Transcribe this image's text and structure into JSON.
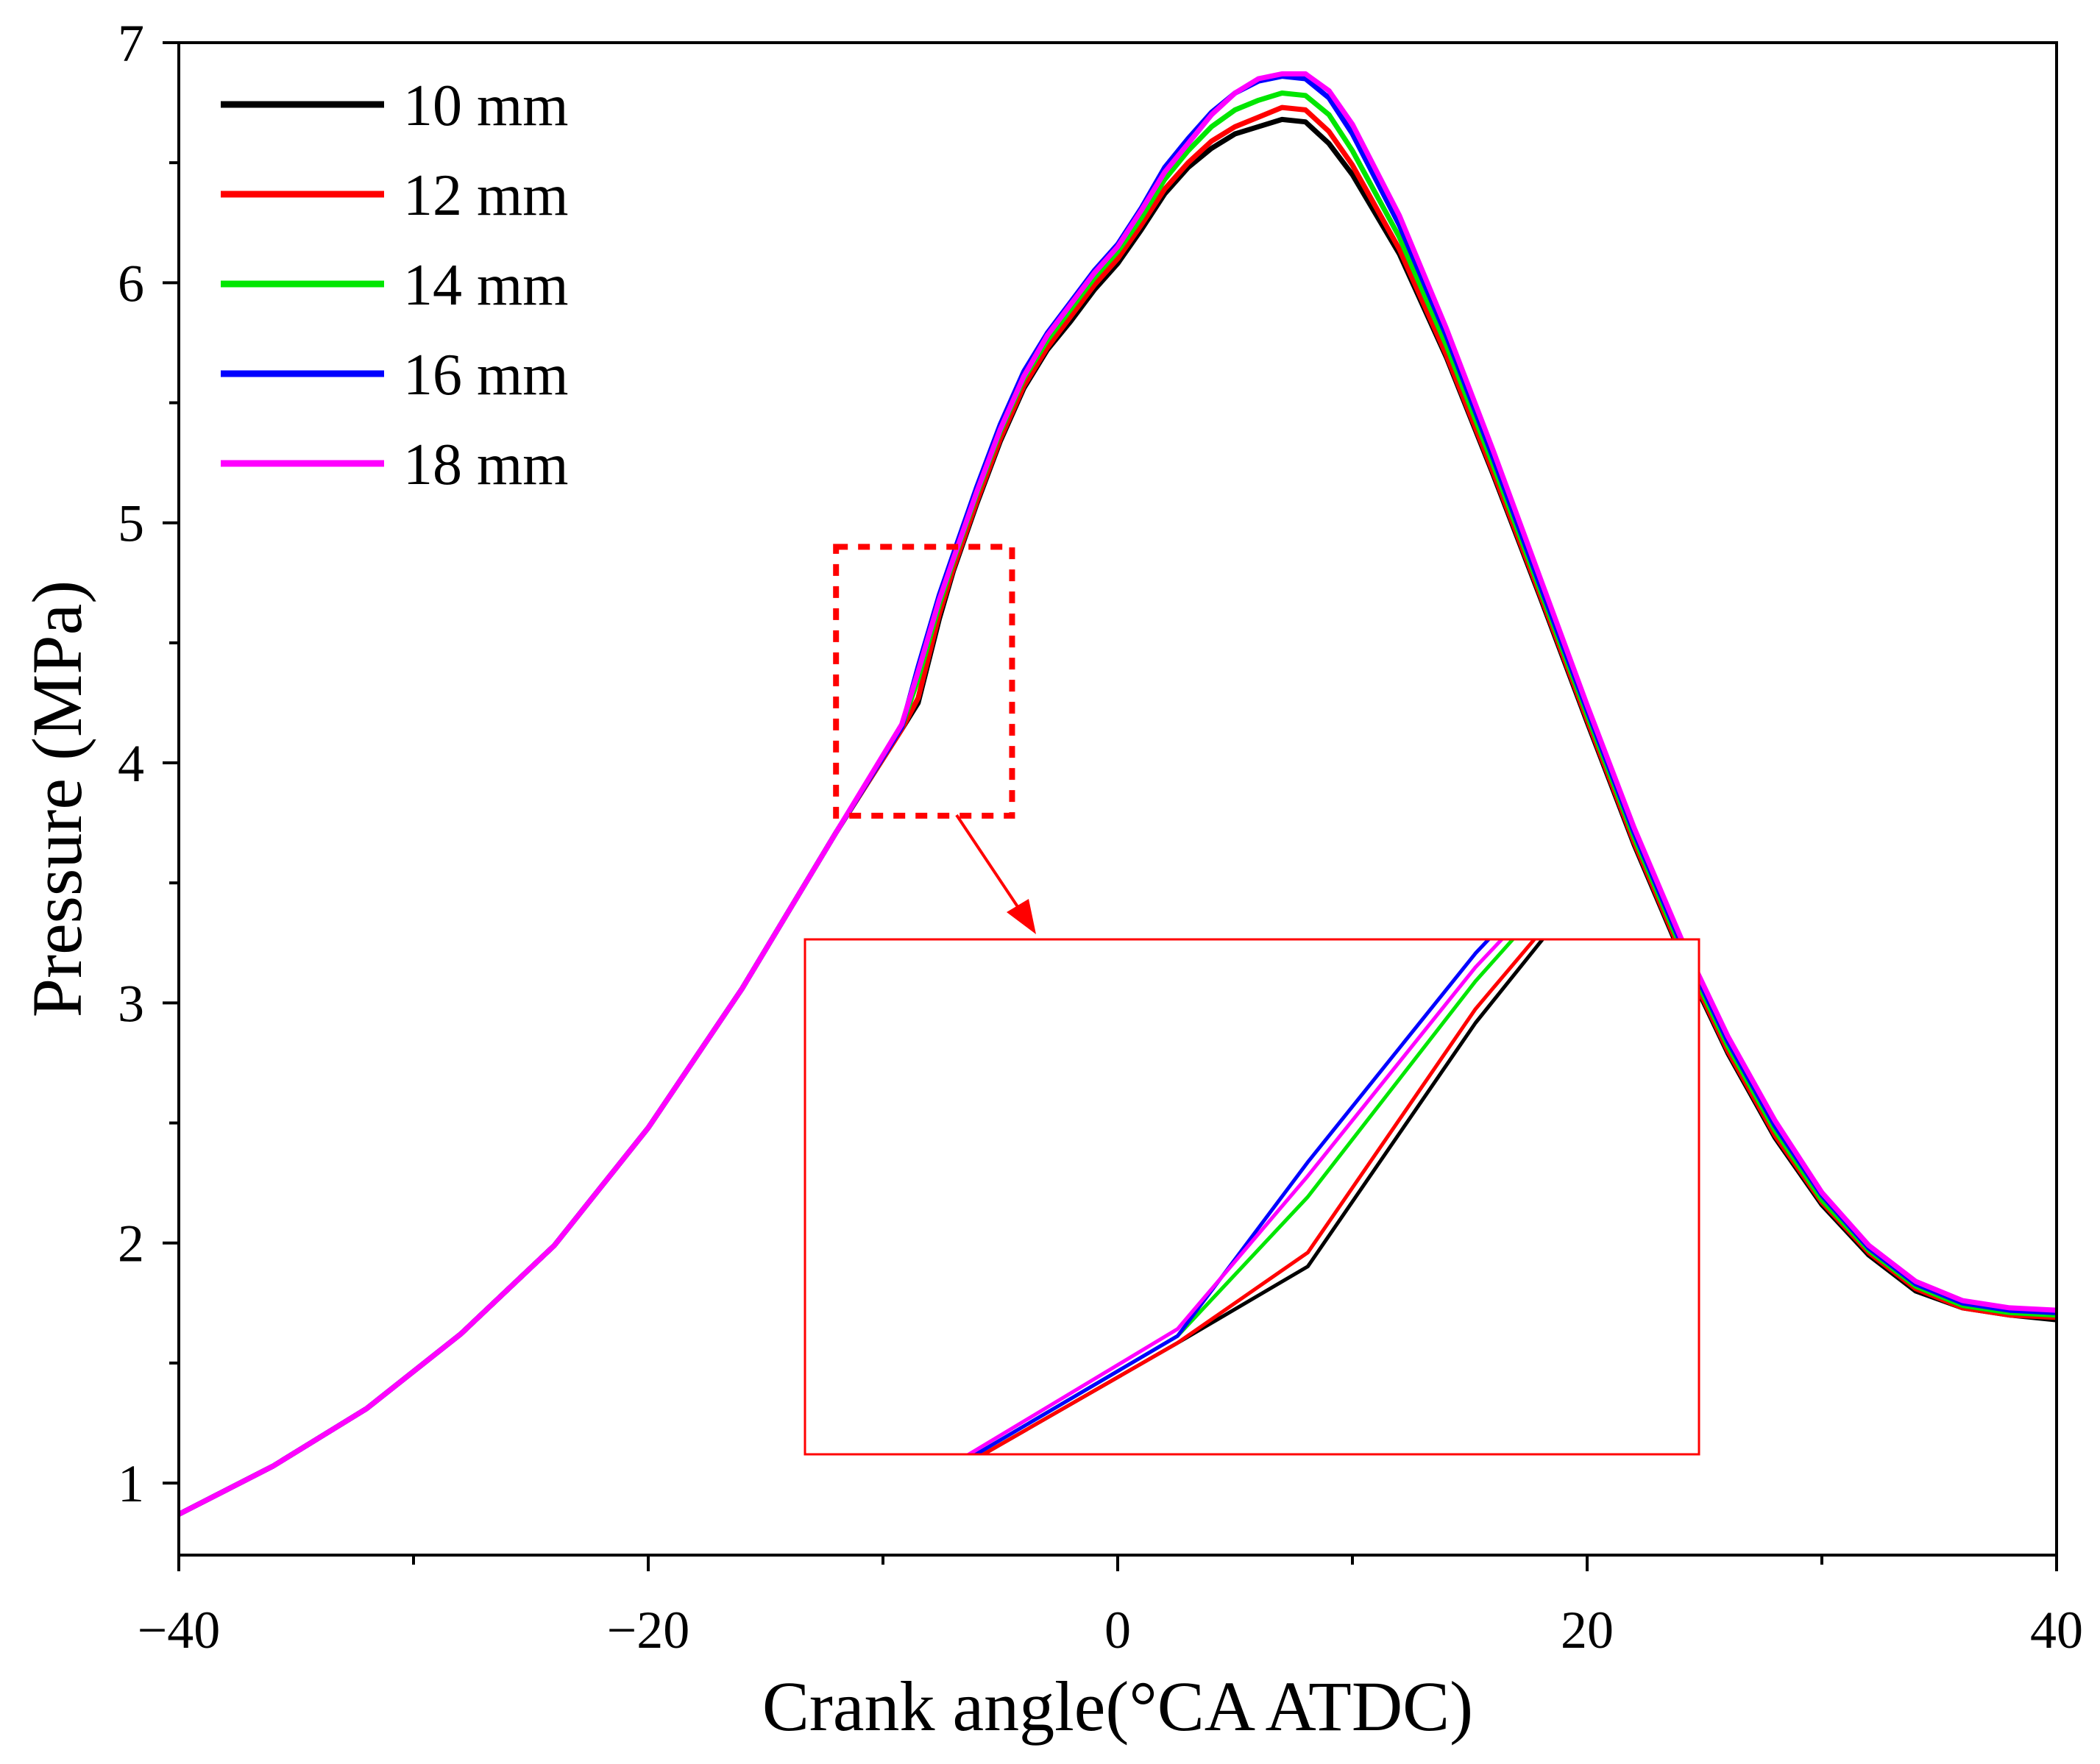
{
  "chart_data": {
    "type": "line",
    "xlabel": "Crank angle(°CA ATDC)",
    "ylabel": "Pressure (MPa)",
    "xlim": [
      -40,
      40
    ],
    "ylim": [
      0.7,
      7
    ],
    "xticks": [
      -40,
      -20,
      0,
      20,
      40
    ],
    "xtick_labels": [
      "−40",
      "−20",
      "0",
      "20",
      "40"
    ],
    "yticks": [
      1,
      2,
      3,
      4,
      5,
      6,
      7
    ],
    "ytick_labels": [
      "1",
      "2",
      "3",
      "4",
      "5",
      "6",
      "7"
    ],
    "grid": false,
    "legend_position": "top-left",
    "series": [
      {
        "name": "10 mm",
        "color": "#000000",
        "x": [
          -40,
          -36,
          -32,
          -28,
          -24,
          -20,
          -16,
          -12,
          -9.2,
          -8.5,
          -7.6,
          -7,
          -6,
          -5,
          -4,
          -3,
          -2,
          -1,
          0,
          1,
          2,
          3,
          4,
          5,
          6,
          7,
          8,
          9,
          10,
          12,
          14,
          16,
          18,
          20,
          22,
          24,
          26,
          28,
          30,
          32,
          34,
          36,
          38,
          40
        ],
        "y": [
          0.87,
          1.07,
          1.31,
          1.62,
          1.99,
          2.48,
          3.06,
          3.71,
          4.14,
          4.25,
          4.6,
          4.8,
          5.08,
          5.34,
          5.56,
          5.72,
          5.84,
          5.97,
          6.08,
          6.22,
          6.37,
          6.48,
          6.56,
          6.62,
          6.65,
          6.68,
          6.67,
          6.58,
          6.45,
          6.12,
          5.69,
          5.2,
          4.69,
          4.17,
          3.66,
          3.2,
          2.79,
          2.44,
          2.16,
          1.95,
          1.8,
          1.73,
          1.7,
          1.68
        ]
      },
      {
        "name": "12 mm",
        "color": "#ff0000",
        "x": [
          -40,
          -36,
          -32,
          -28,
          -24,
          -20,
          -16,
          -12,
          -9.2,
          -8.5,
          -7.6,
          -7,
          -6,
          -5,
          -4,
          -3,
          -2,
          -1,
          0,
          1,
          2,
          3,
          4,
          5,
          6,
          7,
          8,
          9,
          10,
          12,
          14,
          16,
          18,
          20,
          22,
          24,
          26,
          28,
          30,
          32,
          34,
          36,
          38,
          40
        ],
        "y": [
          0.87,
          1.07,
          1.31,
          1.62,
          1.99,
          2.48,
          3.06,
          3.71,
          4.14,
          4.27,
          4.62,
          4.81,
          5.09,
          5.35,
          5.57,
          5.73,
          5.86,
          5.99,
          6.1,
          6.24,
          6.39,
          6.5,
          6.59,
          6.65,
          6.69,
          6.73,
          6.72,
          6.63,
          6.49,
          6.14,
          5.7,
          5.21,
          4.7,
          4.18,
          3.67,
          3.21,
          2.8,
          2.45,
          2.17,
          1.96,
          1.81,
          1.73,
          1.7,
          1.69
        ]
      },
      {
        "name": "14 mm",
        "color": "#00e600",
        "x": [
          -40,
          -36,
          -32,
          -28,
          -24,
          -20,
          -16,
          -12,
          -9.2,
          -8.5,
          -7.6,
          -7,
          -6,
          -5,
          -4,
          -3,
          -2,
          -1,
          0,
          1,
          2,
          3,
          4,
          5,
          6,
          7,
          8,
          9,
          10,
          12,
          14,
          16,
          18,
          20,
          22,
          24,
          26,
          28,
          30,
          32,
          34,
          36,
          38,
          40
        ],
        "y": [
          0.87,
          1.07,
          1.31,
          1.62,
          1.99,
          2.48,
          3.06,
          3.71,
          4.15,
          4.35,
          4.66,
          4.84,
          5.12,
          5.38,
          5.6,
          5.76,
          5.89,
          6.02,
          6.13,
          6.27,
          6.43,
          6.55,
          6.65,
          6.72,
          6.76,
          6.79,
          6.78,
          6.7,
          6.55,
          6.19,
          5.74,
          5.24,
          4.72,
          4.2,
          3.69,
          3.23,
          2.82,
          2.47,
          2.18,
          1.97,
          1.82,
          1.74,
          1.71,
          1.7
        ]
      },
      {
        "name": "16 mm",
        "color": "#0000ff",
        "x": [
          -40,
          -36,
          -32,
          -28,
          -24,
          -20,
          -16,
          -12,
          -9.2,
          -8.5,
          -7.6,
          -7,
          -6,
          -5,
          -4,
          -3,
          -2,
          -1,
          0,
          1,
          2,
          3,
          4,
          5,
          6,
          7,
          8,
          9,
          10,
          12,
          14,
          16,
          18,
          20,
          22,
          24,
          26,
          28,
          30,
          32,
          34,
          36,
          38,
          40
        ],
        "y": [
          0.87,
          1.07,
          1.31,
          1.62,
          1.99,
          2.48,
          3.06,
          3.71,
          4.15,
          4.4,
          4.7,
          4.87,
          5.15,
          5.41,
          5.63,
          5.79,
          5.92,
          6.05,
          6.16,
          6.31,
          6.48,
          6.6,
          6.71,
          6.79,
          6.84,
          6.86,
          6.85,
          6.77,
          6.62,
          6.24,
          5.78,
          5.27,
          4.74,
          4.22,
          3.71,
          3.25,
          2.84,
          2.49,
          2.2,
          1.98,
          1.83,
          1.75,
          1.72,
          1.71
        ]
      },
      {
        "name": "18 mm",
        "color": "#ff00ff",
        "x": [
          -40,
          -36,
          -32,
          -28,
          -24,
          -20,
          -16,
          -12,
          -9.2,
          -8.5,
          -7.6,
          -7,
          -6,
          -5,
          -4,
          -3,
          -2,
          -1,
          0,
          1,
          2,
          3,
          4,
          5,
          6,
          7,
          8,
          9,
          10,
          12,
          14,
          16,
          18,
          20,
          22,
          24,
          26,
          28,
          30,
          32,
          34,
          36,
          38,
          40
        ],
        "y": [
          0.87,
          1.07,
          1.31,
          1.62,
          1.99,
          2.48,
          3.06,
          3.71,
          4.16,
          4.38,
          4.68,
          4.85,
          5.13,
          5.39,
          5.61,
          5.78,
          5.91,
          6.04,
          6.15,
          6.3,
          6.46,
          6.58,
          6.7,
          6.79,
          6.85,
          6.87,
          6.87,
          6.8,
          6.66,
          6.28,
          5.81,
          5.3,
          4.77,
          4.24,
          3.73,
          3.27,
          2.86,
          2.51,
          2.21,
          1.99,
          1.84,
          1.76,
          1.73,
          1.72
        ]
      }
    ],
    "zoom_region": {
      "xlim": [
        -12,
        -4.5
      ],
      "ylim": [
        3.78,
        4.9
      ]
    },
    "inset_style": {
      "color": "#ff0000"
    }
  }
}
